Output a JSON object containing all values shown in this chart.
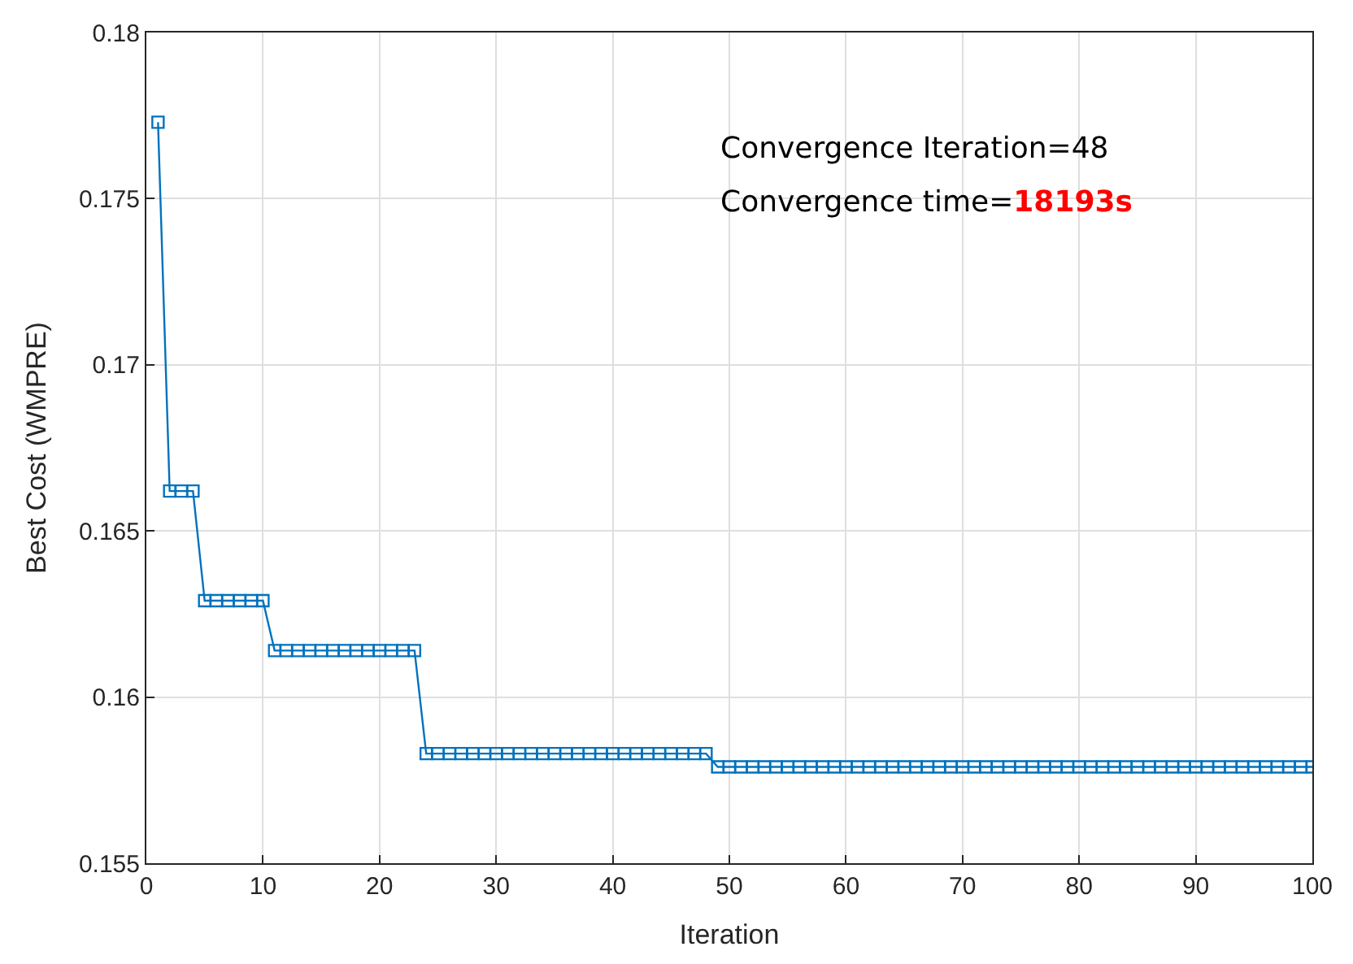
{
  "chart_data": {
    "type": "line",
    "xlabel": "Iteration",
    "ylabel": "Best Cost (WMPRE)",
    "x": [
      1,
      2,
      3,
      4,
      5,
      6,
      7,
      8,
      9,
      10,
      11,
      12,
      13,
      14,
      15,
      16,
      17,
      18,
      19,
      20,
      21,
      22,
      23,
      24,
      25,
      26,
      27,
      28,
      29,
      30,
      31,
      32,
      33,
      34,
      35,
      36,
      37,
      38,
      39,
      40,
      41,
      42,
      43,
      44,
      45,
      46,
      47,
      48,
      49,
      50,
      51,
      52,
      53,
      54,
      55,
      56,
      57,
      58,
      59,
      60,
      61,
      62,
      63,
      64,
      65,
      66,
      67,
      68,
      69,
      70,
      71,
      72,
      73,
      74,
      75,
      76,
      77,
      78,
      79,
      80,
      81,
      82,
      83,
      84,
      85,
      86,
      87,
      88,
      89,
      90,
      91,
      92,
      93,
      94,
      95,
      96,
      97,
      98,
      99,
      100
    ],
    "series": [
      {
        "color": "#0072bd",
        "values": [
          0.1773,
          0.1662,
          0.1662,
          0.1662,
          0.1629,
          0.1629,
          0.1629,
          0.1629,
          0.1629,
          0.1629,
          0.1614,
          0.1614,
          0.1614,
          0.1614,
          0.1614,
          0.1614,
          0.1614,
          0.1614,
          0.1614,
          0.1614,
          0.1614,
          0.1614,
          0.1614,
          0.1583,
          0.1583,
          0.1583,
          0.1583,
          0.1583,
          0.1583,
          0.1583,
          0.1583,
          0.1583,
          0.1583,
          0.1583,
          0.1583,
          0.1583,
          0.1583,
          0.1583,
          0.1583,
          0.1583,
          0.1583,
          0.1583,
          0.1583,
          0.1583,
          0.1583,
          0.1583,
          0.1583,
          0.1583,
          0.1579,
          0.1579,
          0.1579,
          0.1579,
          0.1579,
          0.1579,
          0.1579,
          0.1579,
          0.1579,
          0.1579,
          0.1579,
          0.1579,
          0.1579,
          0.1579,
          0.1579,
          0.1579,
          0.1579,
          0.1579,
          0.1579,
          0.1579,
          0.1579,
          0.1579,
          0.1579,
          0.1579,
          0.1579,
          0.1579,
          0.1579,
          0.1579,
          0.1579,
          0.1579,
          0.1579,
          0.1579,
          0.1579,
          0.1579,
          0.1579,
          0.1579,
          0.1579,
          0.1579,
          0.1579,
          0.1579,
          0.1579,
          0.1579,
          0.1579,
          0.1579,
          0.1579,
          0.1579,
          0.1579,
          0.1579,
          0.1579,
          0.1579,
          0.1579,
          0.1579
        ]
      }
    ],
    "xlim": [
      0,
      100
    ],
    "xticks": [
      0,
      10,
      20,
      30,
      40,
      50,
      60,
      70,
      80,
      90,
      100
    ],
    "ylim": [
      0.155,
      0.18
    ],
    "yticks": [
      0.155,
      0.16,
      0.165,
      0.17,
      0.175,
      0.18
    ],
    "grid": true,
    "marker": "square",
    "line_style": "solid",
    "annotations": [
      "Convergence Iteration=48",
      "Convergence time=18193s"
    ]
  }
}
